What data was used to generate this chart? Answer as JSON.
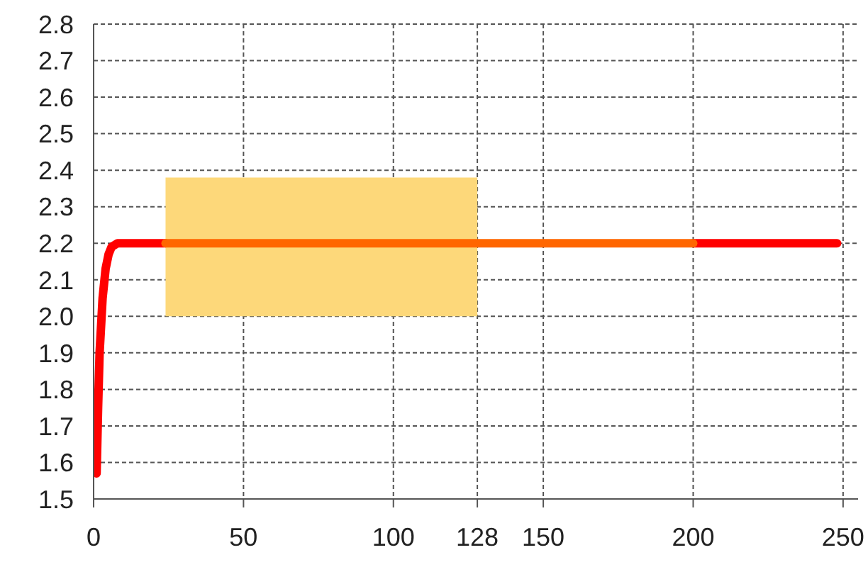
{
  "chart_data": {
    "type": "line",
    "xlim": [
      0,
      255
    ],
    "xticks": [
      0,
      50,
      100,
      128,
      150,
      200,
      250
    ],
    "ylim": [
      1.5,
      2.8
    ],
    "yticks": [
      1.5,
      1.6,
      1.7,
      1.8,
      1.9,
      {
        "value": 2,
        "label": "2.0"
      },
      2.1,
      2.2,
      2.3,
      2.4,
      2.5,
      2.6,
      2.7,
      2.8
    ],
    "grid": true,
    "line_style": "solid",
    "marker": "none",
    "series": [
      {
        "color": "#ff0000",
        "x": [
          1,
          1.5,
          2,
          3,
          4,
          5,
          6,
          8,
          24,
          100,
          200,
          248
        ],
        "values": [
          1.57,
          1.75,
          1.9,
          2.05,
          2.13,
          2.17,
          2.19,
          2.2,
          2.2,
          null,
          2.2,
          2.2
        ]
      },
      {
        "color": "#ff6600",
        "x": [
          24,
          128,
          200
        ],
        "values": [
          2.2,
          2.2,
          2.2
        ],
        "lower": [
          2.0,
          2.0,
          null
        ],
        "upper": [
          2.38,
          2.38,
          null
        ]
      }
    ]
  }
}
